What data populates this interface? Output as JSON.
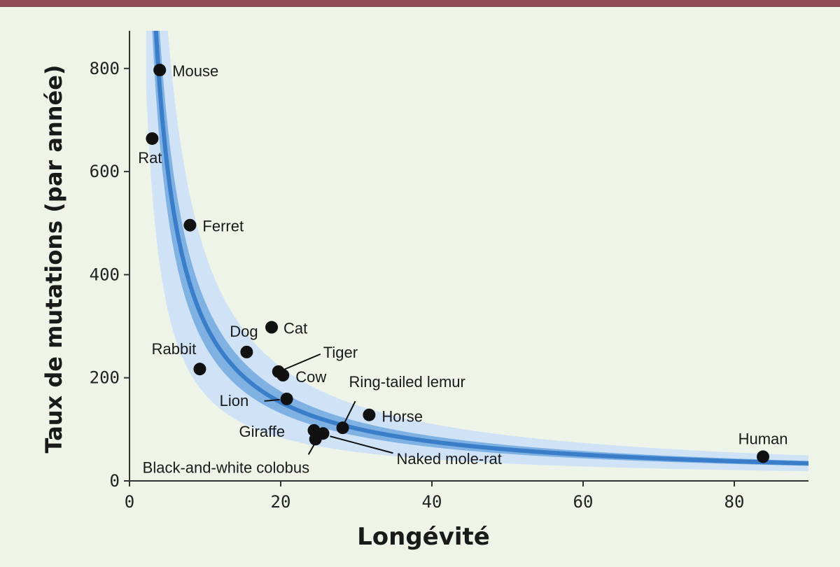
{
  "chart_data": {
    "type": "scatter",
    "title": "",
    "xlabel": "Longévité",
    "ylabel": "Taux de mutations (par année)",
    "xlim": [
      0,
      90
    ],
    "ylim": [
      0,
      880
    ],
    "xticks": [
      0,
      20,
      40,
      60,
      80
    ],
    "yticks": [
      0,
      200,
      400,
      600,
      800
    ],
    "grid": false,
    "colors": {
      "background": "#eef5e8",
      "top_bar": "#8e4a53",
      "fit_line": "#3a7dc9",
      "inner_band": "#7fb1e3",
      "outer_band": "#cfe2f6",
      "points": "#111111",
      "axis": "#333333"
    },
    "fit": {
      "description": "inverse fit: y = k / x",
      "k": 3050,
      "inner_band_factor": 0.14,
      "outer_band_factor": 0.45
    },
    "points": [
      {
        "name": "Mouse",
        "x": 4.0,
        "y": 797
      },
      {
        "name": "Rat",
        "x": 3.0,
        "y": 664
      },
      {
        "name": "Ferret",
        "x": 8.0,
        "y": 496
      },
      {
        "name": "Rabbit",
        "x": 9.3,
        "y": 217
      },
      {
        "name": "Dog",
        "x": 15.5,
        "y": 250
      },
      {
        "name": "Cat",
        "x": 18.8,
        "y": 298
      },
      {
        "name": "Tiger",
        "x": 19.7,
        "y": 212
      },
      {
        "name": "Cow",
        "x": 20.3,
        "y": 205
      },
      {
        "name": "Lion",
        "x": 20.8,
        "y": 159
      },
      {
        "name": "Ring-tailed lemur",
        "x": 28.2,
        "y": 103
      },
      {
        "name": "Horse",
        "x": 31.7,
        "y": 128
      },
      {
        "name": "Giraffe",
        "x": 24.4,
        "y": 98
      },
      {
        "name": "Black-and-white colobus",
        "x": 24.6,
        "y": 81
      },
      {
        "name": "Naked mole-rat",
        "x": 25.6,
        "y": 92
      },
      {
        "name": "Human",
        "x": 83.8,
        "y": 47
      }
    ]
  }
}
